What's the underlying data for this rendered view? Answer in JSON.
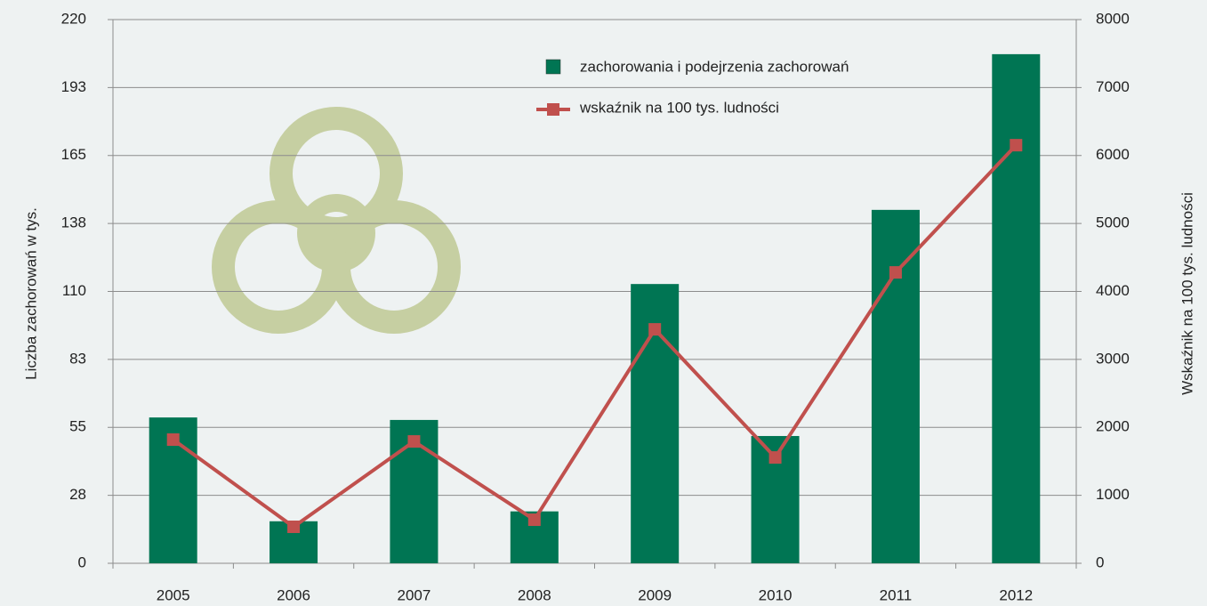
{
  "chart_data": {
    "type": "bar_line",
    "y_label": "Liczba zachorowań w tys.",
    "y2_label": "Wskaźnik na 100 tys. ludności",
    "categories": [
      "2005",
      "2006",
      "2007",
      "2008",
      "2009",
      "2010",
      "2011",
      "2012"
    ],
    "series": [
      {
        "name": "zachorowania i podejrzenia zachorowań",
        "type": "bar",
        "color": "#007553",
        "values": [
          59,
          17,
          58,
          21,
          113,
          51.5,
          143,
          206
        ]
      },
      {
        "name": "wskaźnik na 100 tys. ludności",
        "type": "line",
        "axis": "y2",
        "color": "#c0504d",
        "values": [
          1820,
          537,
          1793,
          641,
          3442,
          1557,
          4280,
          6152
        ]
      }
    ],
    "ylim": [
      0,
      220
    ],
    "yticks": [
      0,
      {
        "value": 27.5,
        "label": "28"
      },
      55,
      {
        "value": 82.5,
        "label": "83"
      },
      110,
      {
        "value": 137.5,
        "label": "138"
      },
      165,
      {
        "value": 192.5,
        "label": "193"
      },
      220
    ],
    "y2lim": [
      0,
      8000
    ],
    "y2ticks": [
      0,
      1000,
      2000,
      3000,
      4000,
      5000,
      6000,
      7000,
      8000
    ],
    "grid": true
  }
}
